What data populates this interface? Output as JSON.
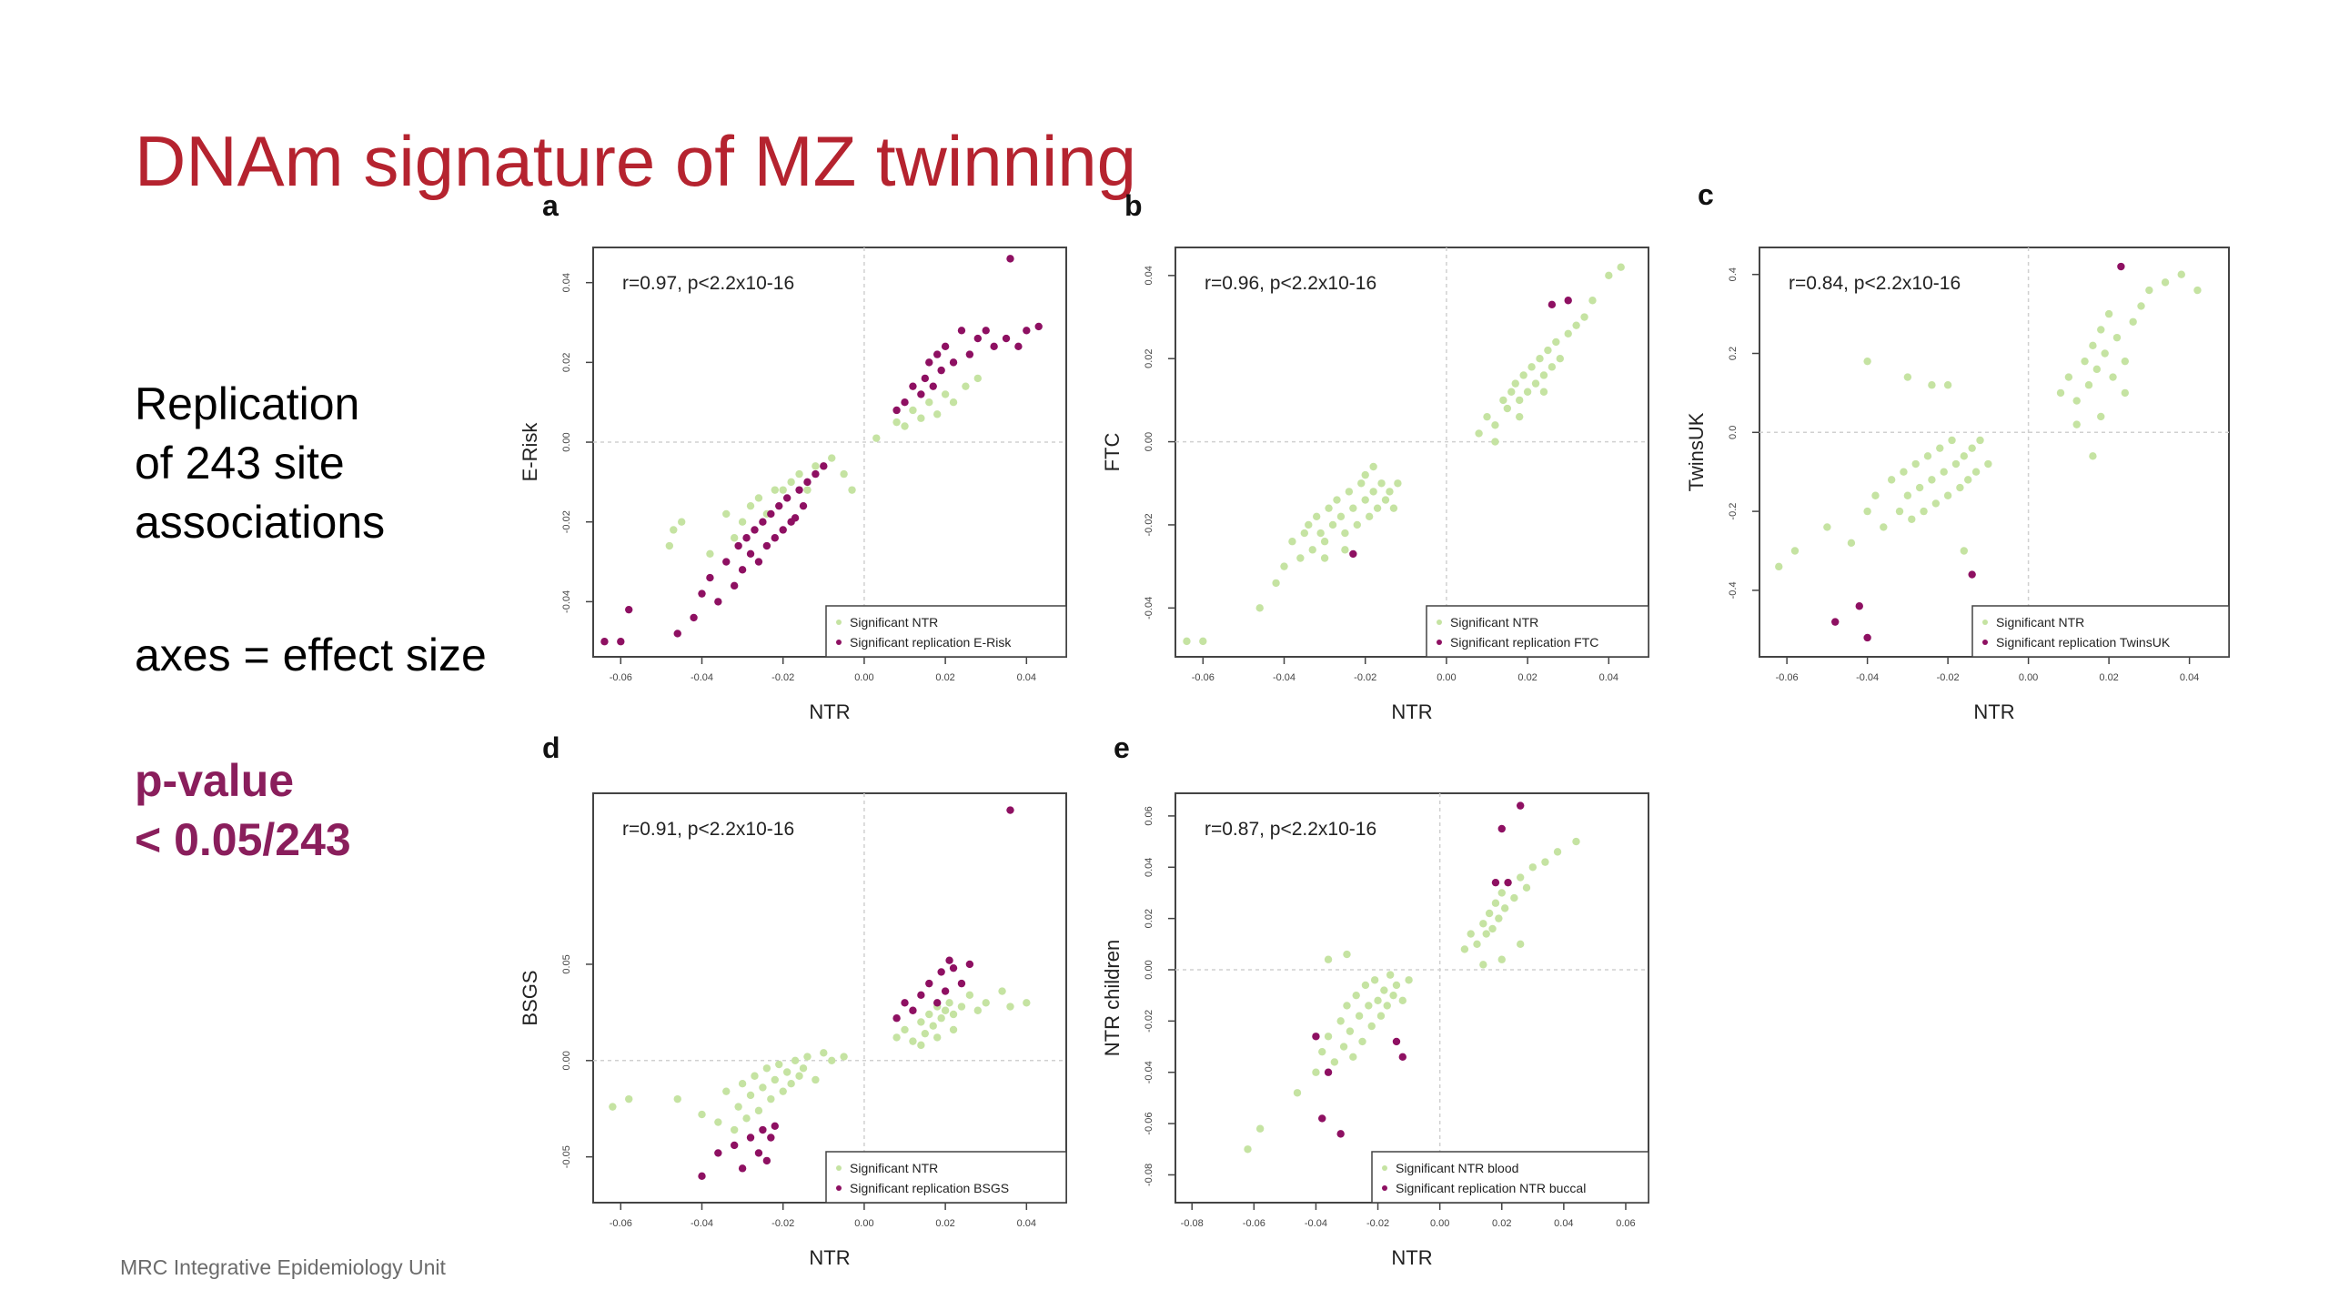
{
  "slide": {
    "title": "DNAm signature of MZ twinning",
    "replication": "Replication\nof 243 site\nassociations",
    "axes_note": "axes = effect size",
    "pvalue": "p-value\n< 0.05/243",
    "footer": "MRC Integrative Epidemiology Unit"
  },
  "colors": {
    "ntr": "#c5e3a2",
    "replication": "#8e1062",
    "title": "#b5232f"
  },
  "chart_data": [
    {
      "panel": "a",
      "type": "scatter",
      "annotation": "r=0.97, p<2.2x10-16",
      "xlabel": "NTR",
      "ylabel": "E-Risk",
      "xlim": [
        -0.065,
        0.048
      ],
      "ylim": [
        -0.052,
        0.047
      ],
      "xticks": [
        "-0.06",
        "-0.04",
        "-0.02",
        "0.00",
        "0.02",
        "0.04"
      ],
      "yticks": [
        "-0.04",
        "-0.02",
        "0.00",
        "0.02",
        "0.04"
      ],
      "legend": [
        "Significant NTR",
        "Significant replication E-Risk"
      ],
      "series": [
        {
          "name": "Significant NTR",
          "x": [
            -0.048,
            -0.047,
            -0.045,
            -0.038,
            -0.034,
            -0.032,
            -0.03,
            -0.028,
            -0.026,
            -0.024,
            -0.022,
            -0.02,
            -0.018,
            -0.016,
            -0.014,
            -0.012,
            -0.01,
            -0.008,
            -0.005,
            -0.003,
            0.003,
            0.008,
            0.01,
            0.012,
            0.014,
            0.016,
            0.018,
            0.02,
            0.022,
            0.025,
            0.028
          ],
          "y": [
            -0.026,
            -0.022,
            -0.02,
            -0.028,
            -0.018,
            -0.024,
            -0.02,
            -0.016,
            -0.014,
            -0.018,
            -0.012,
            -0.012,
            -0.01,
            -0.008,
            -0.012,
            -0.006,
            -0.006,
            -0.004,
            -0.008,
            -0.012,
            0.001,
            0.005,
            0.004,
            0.008,
            0.006,
            0.01,
            0.007,
            0.012,
            0.01,
            0.014,
            0.016
          ]
        },
        {
          "name": "Significant replication E-Risk",
          "x": [
            -0.064,
            -0.06,
            -0.058,
            -0.046,
            -0.042,
            -0.04,
            -0.038,
            -0.036,
            -0.034,
            -0.032,
            -0.031,
            -0.03,
            -0.029,
            -0.028,
            -0.027,
            -0.026,
            -0.025,
            -0.024,
            -0.023,
            -0.022,
            -0.021,
            -0.02,
            -0.019,
            -0.018,
            -0.017,
            -0.016,
            -0.015,
            -0.014,
            -0.012,
            -0.01,
            0.008,
            0.01,
            0.012,
            0.014,
            0.015,
            0.016,
            0.017,
            0.018,
            0.019,
            0.02,
            0.022,
            0.024,
            0.026,
            0.028,
            0.03,
            0.032,
            0.035,
            0.038,
            0.04,
            0.043,
            0.036
          ],
          "y": [
            -0.05,
            -0.05,
            -0.042,
            -0.048,
            -0.044,
            -0.038,
            -0.034,
            -0.04,
            -0.03,
            -0.036,
            -0.026,
            -0.032,
            -0.024,
            -0.028,
            -0.022,
            -0.03,
            -0.02,
            -0.026,
            -0.018,
            -0.024,
            -0.016,
            -0.022,
            -0.014,
            -0.02,
            -0.019,
            -0.012,
            -0.016,
            -0.01,
            -0.008,
            -0.006,
            0.008,
            0.01,
            0.014,
            0.012,
            0.016,
            0.02,
            0.014,
            0.022,
            0.018,
            0.024,
            0.02,
            0.028,
            0.022,
            0.026,
            0.028,
            0.024,
            0.026,
            0.024,
            0.028,
            0.029,
            0.046
          ]
        }
      ]
    },
    {
      "panel": "b",
      "type": "scatter",
      "annotation": "r=0.96, p<2.2x10-16",
      "xlabel": "NTR",
      "ylabel": "FTC",
      "xlim": [
        -0.065,
        0.048
      ],
      "ylim": [
        -0.05,
        0.045
      ],
      "xticks": [
        "-0.06",
        "-0.04",
        "-0.02",
        "0.00",
        "0.02",
        "0.04"
      ],
      "yticks": [
        "-0.04",
        "-0.02",
        "0.00",
        "0.02",
        "0.04"
      ],
      "legend": [
        "Significant NTR",
        "Significant replication FTC"
      ],
      "series": [
        {
          "name": "Significant NTR",
          "x": [
            -0.064,
            -0.06,
            -0.046,
            -0.042,
            -0.04,
            -0.038,
            -0.036,
            -0.034,
            -0.033,
            -0.032,
            -0.031,
            -0.03,
            -0.029,
            -0.028,
            -0.027,
            -0.026,
            -0.025,
            -0.024,
            -0.023,
            -0.022,
            -0.021,
            -0.02,
            -0.019,
            -0.018,
            -0.017,
            -0.016,
            -0.015,
            -0.014,
            -0.013,
            -0.012,
            -0.025,
            -0.03,
            -0.035,
            -0.02,
            -0.018,
            0.008,
            0.01,
            0.012,
            0.014,
            0.015,
            0.016,
            0.017,
            0.018,
            0.019,
            0.02,
            0.021,
            0.022,
            0.023,
            0.024,
            0.025,
            0.026,
            0.027,
            0.028,
            0.03,
            0.032,
            0.034,
            0.036,
            0.04,
            0.043,
            0.012,
            0.018,
            0.024
          ],
          "y": [
            -0.048,
            -0.048,
            -0.04,
            -0.034,
            -0.03,
            -0.024,
            -0.028,
            -0.02,
            -0.026,
            -0.018,
            -0.022,
            -0.024,
            -0.016,
            -0.02,
            -0.014,
            -0.018,
            -0.022,
            -0.012,
            -0.016,
            -0.02,
            -0.01,
            -0.014,
            -0.018,
            -0.012,
            -0.016,
            -0.01,
            -0.014,
            -0.012,
            -0.016,
            -0.01,
            -0.026,
            -0.028,
            -0.022,
            -0.008,
            -0.006,
            0.002,
            0.006,
            0.004,
            0.01,
            0.008,
            0.012,
            0.014,
            0.01,
            0.016,
            0.012,
            0.018,
            0.014,
            0.02,
            0.016,
            0.022,
            0.018,
            0.024,
            0.02,
            0.026,
            0.028,
            0.03,
            0.034,
            0.04,
            0.042,
            0.0,
            0.006,
            0.012
          ]
        },
        {
          "name": "Significant replication FTC",
          "x": [
            -0.023,
            0.026,
            0.03
          ],
          "y": [
            -0.027,
            0.033,
            0.034
          ]
        }
      ]
    },
    {
      "panel": "c",
      "type": "scatter",
      "annotation": "r=0.84, p<2.2x10-16",
      "xlabel": "NTR",
      "ylabel": "TwinsUK",
      "xlim": [
        -0.065,
        0.048
      ],
      "ylim": [
        -0.055,
        0.045
      ],
      "xticks": [
        "-0.06",
        "-0.04",
        "-0.02",
        "0.00",
        "0.02",
        "0.04"
      ],
      "yticks": [
        "-0.4",
        "-0.2",
        "0.0",
        "0.2",
        "0.4"
      ],
      "legend": [
        "Significant NTR",
        "Significant replication TwinsUK"
      ],
      "series": [
        {
          "name": "Significant NTR",
          "x": [
            -0.062,
            -0.058,
            -0.05,
            -0.044,
            -0.04,
            -0.038,
            -0.036,
            -0.034,
            -0.032,
            -0.031,
            -0.03,
            -0.029,
            -0.028,
            -0.027,
            -0.026,
            -0.025,
            -0.024,
            -0.023,
            -0.022,
            -0.021,
            -0.02,
            -0.019,
            -0.018,
            -0.017,
            -0.016,
            -0.015,
            -0.014,
            -0.013,
            -0.012,
            -0.01,
            -0.04,
            -0.03,
            -0.024,
            -0.02,
            -0.016,
            0.008,
            0.01,
            0.012,
            0.014,
            0.015,
            0.016,
            0.017,
            0.018,
            0.019,
            0.02,
            0.021,
            0.022,
            0.024,
            0.026,
            0.028,
            0.03,
            0.034,
            0.038,
            0.042,
            0.012,
            0.018,
            0.024,
            0.016
          ],
          "y": [
            -0.034,
            -0.03,
            -0.024,
            -0.028,
            -0.02,
            -0.016,
            -0.024,
            -0.012,
            -0.02,
            -0.01,
            -0.016,
            -0.022,
            -0.008,
            -0.014,
            -0.02,
            -0.006,
            -0.012,
            -0.018,
            -0.004,
            -0.01,
            -0.016,
            -0.002,
            -0.008,
            -0.014,
            -0.006,
            -0.012,
            -0.004,
            -0.01,
            -0.002,
            -0.008,
            0.018,
            0.014,
            0.012,
            0.012,
            -0.03,
            0.01,
            0.014,
            0.008,
            0.018,
            0.012,
            0.022,
            0.016,
            0.026,
            0.02,
            0.03,
            0.014,
            0.024,
            0.018,
            0.028,
            0.032,
            0.036,
            0.038,
            0.04,
            0.036,
            0.002,
            0.004,
            0.01,
            -0.006
          ]
        },
        {
          "name": "Significant replication TwinsUK",
          "x": [
            -0.048,
            -0.04,
            -0.042,
            -0.014,
            0.023
          ],
          "y": [
            -0.048,
            -0.052,
            -0.044,
            -0.036,
            0.042
          ]
        }
      ]
    },
    {
      "panel": "d",
      "type": "scatter",
      "annotation": "r=0.91, p<2.2x10-16",
      "xlabel": "NTR",
      "ylabel": "BSGS",
      "xlim": [
        -0.065,
        0.048
      ],
      "ylim": [
        -0.07,
        0.135
      ],
      "xticks": [
        "-0.06",
        "-0.04",
        "-0.02",
        "0.00",
        "0.02",
        "0.04"
      ],
      "yticks": [
        "-0.05",
        "0.00",
        "0.05"
      ],
      "legend": [
        "Significant NTR",
        "Significant replication BSGS"
      ],
      "series": [
        {
          "name": "Significant NTR",
          "x": [
            -0.062,
            -0.058,
            -0.046,
            -0.04,
            -0.036,
            -0.034,
            -0.032,
            -0.031,
            -0.03,
            -0.029,
            -0.028,
            -0.027,
            -0.026,
            -0.025,
            -0.024,
            -0.023,
            -0.022,
            -0.021,
            -0.02,
            -0.019,
            -0.018,
            -0.017,
            -0.016,
            -0.015,
            -0.014,
            -0.012,
            -0.01,
            -0.008,
            -0.005,
            0.008,
            0.01,
            0.012,
            0.014,
            0.015,
            0.016,
            0.017,
            0.018,
            0.019,
            0.02,
            0.021,
            0.022,
            0.024,
            0.026,
            0.028,
            0.03,
            0.034,
            0.036,
            0.04,
            0.014,
            0.018,
            0.022
          ],
          "y": [
            -0.024,
            -0.02,
            -0.02,
            -0.028,
            -0.032,
            -0.016,
            -0.036,
            -0.024,
            -0.012,
            -0.03,
            -0.018,
            -0.008,
            -0.026,
            -0.014,
            -0.004,
            -0.02,
            -0.01,
            -0.002,
            -0.016,
            -0.006,
            -0.012,
            0.0,
            -0.008,
            -0.004,
            0.002,
            -0.01,
            0.004,
            0.0,
            0.002,
            0.012,
            0.016,
            0.01,
            0.02,
            0.014,
            0.024,
            0.018,
            0.028,
            0.022,
            0.026,
            0.03,
            0.024,
            0.028,
            0.034,
            0.026,
            0.03,
            0.036,
            0.028,
            0.03,
            0.008,
            0.012,
            0.016
          ]
        },
        {
          "name": "Significant replication BSGS",
          "x": [
            -0.04,
            -0.036,
            -0.032,
            -0.03,
            -0.028,
            -0.026,
            -0.025,
            -0.024,
            -0.023,
            -0.022,
            0.008,
            0.01,
            0.012,
            0.014,
            0.016,
            0.018,
            0.019,
            0.02,
            0.021,
            0.022,
            0.024,
            0.026,
            0.036
          ],
          "y": [
            -0.06,
            -0.048,
            -0.044,
            -0.056,
            -0.04,
            -0.048,
            -0.036,
            -0.052,
            -0.04,
            -0.034,
            0.022,
            0.03,
            0.026,
            0.034,
            0.04,
            0.03,
            0.046,
            0.036,
            0.052,
            0.048,
            0.04,
            0.05,
            0.13
          ]
        }
      ]
    },
    {
      "panel": "e",
      "type": "scatter",
      "annotation": "r=0.87, p<2.2x10-16",
      "xlabel": "NTR",
      "ylabel": "NTR children",
      "xlim": [
        -0.083,
        0.065
      ],
      "ylim": [
        -0.088,
        0.066
      ],
      "xticks": [
        "-0.08",
        "-0.06",
        "-0.04",
        "-0.02",
        "0.00",
        "0.02",
        "0.04",
        "0.06"
      ],
      "yticks": [
        "-0.08",
        "-0.06",
        "-0.04",
        "-0.02",
        "0.00",
        "0.02",
        "0.04",
        "0.06"
      ],
      "legend": [
        "Significant NTR blood",
        "Significant replication NTR buccal"
      ],
      "series": [
        {
          "name": "Significant NTR blood",
          "x": [
            -0.062,
            -0.058,
            -0.046,
            -0.04,
            -0.038,
            -0.036,
            -0.034,
            -0.032,
            -0.031,
            -0.03,
            -0.029,
            -0.028,
            -0.027,
            -0.026,
            -0.025,
            -0.024,
            -0.023,
            -0.022,
            -0.021,
            -0.02,
            -0.019,
            -0.018,
            -0.017,
            -0.016,
            -0.015,
            -0.014,
            -0.012,
            -0.01,
            -0.036,
            -0.03,
            0.008,
            0.01,
            0.012,
            0.014,
            0.015,
            0.016,
            0.017,
            0.018,
            0.019,
            0.02,
            0.021,
            0.022,
            0.024,
            0.026,
            0.028,
            0.03,
            0.034,
            0.038,
            0.044,
            0.014,
            0.02,
            0.026
          ],
          "y": [
            -0.07,
            -0.062,
            -0.048,
            -0.04,
            -0.032,
            -0.026,
            -0.036,
            -0.02,
            -0.03,
            -0.014,
            -0.024,
            -0.034,
            -0.01,
            -0.018,
            -0.028,
            -0.006,
            -0.014,
            -0.022,
            -0.004,
            -0.012,
            -0.018,
            -0.008,
            -0.014,
            -0.002,
            -0.01,
            -0.006,
            -0.012,
            -0.004,
            0.004,
            0.006,
            0.008,
            0.014,
            0.01,
            0.018,
            0.014,
            0.022,
            0.016,
            0.026,
            0.02,
            0.03,
            0.024,
            0.034,
            0.028,
            0.036,
            0.032,
            0.04,
            0.042,
            0.046,
            0.05,
            0.002,
            0.004,
            0.01
          ]
        },
        {
          "name": "Significant replication NTR buccal",
          "x": [
            -0.04,
            -0.036,
            -0.038,
            -0.032,
            -0.014,
            -0.012,
            0.018,
            0.022,
            0.02,
            0.026
          ],
          "y": [
            -0.026,
            -0.04,
            -0.058,
            -0.064,
            -0.028,
            -0.034,
            0.034,
            0.034,
            0.055,
            0.064
          ]
        }
      ]
    }
  ]
}
